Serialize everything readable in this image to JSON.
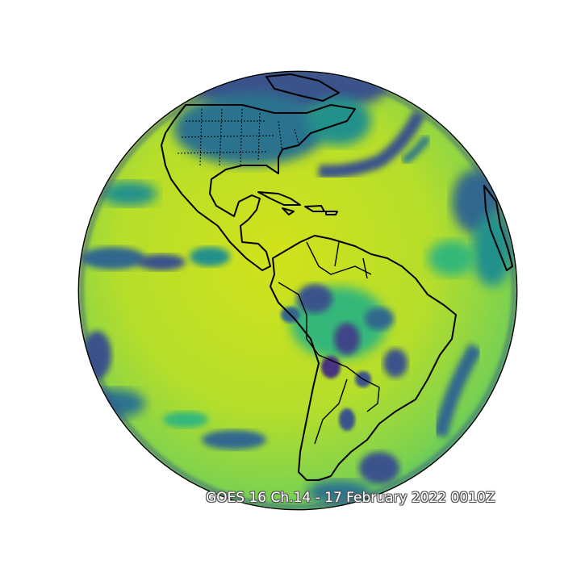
{
  "map": {
    "caption": "GOES 16 Ch.14 - 17 February 2022 0010Z",
    "projection": "geostationary full disk",
    "colormap": "viridis",
    "colors": {
      "background": "#ffffff",
      "disk_bright": "#d4e21a",
      "disk_mid": "#7ad151",
      "disk_green": "#22a884",
      "disk_dark": "#414487",
      "disk_deep": "#440154",
      "coastline": "#000000"
    }
  }
}
